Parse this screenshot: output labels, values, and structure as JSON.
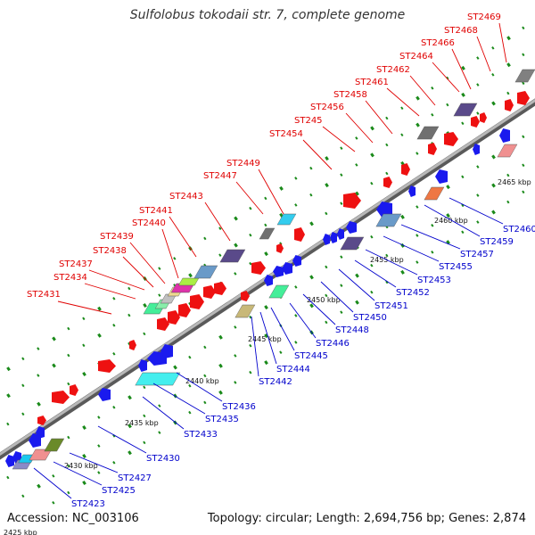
{
  "title": "Sulfolobus tokodaii str. 7, complete genome",
  "footer": {
    "accession": "Accession: NC_003106",
    "topology": "Topology: circular; Length: 2,694,756 bp; Genes: 2,874"
  },
  "ticks": [
    "2425 kbp",
    "2430 kbp",
    "2435 kbp",
    "2440 kbp",
    "2445 kbp",
    "2450 kbp",
    "2455 kbp",
    "2460 kbp",
    "2465 kbp"
  ],
  "top_labels": [
    "ST2431",
    "ST2434",
    "ST2437",
    "ST2438",
    "ST2439",
    "ST2440",
    "ST2441",
    "ST2443",
    "ST2447",
    "ST2449",
    "ST2454",
    "ST245",
    "ST2456",
    "ST2458",
    "ST2461",
    "ST2462",
    "ST2464",
    "ST2466",
    "ST2468",
    "ST2469"
  ],
  "bottom_labels": [
    "ST2423",
    "ST2425",
    "ST2427",
    "ST2430",
    "ST2433",
    "ST2435",
    "ST2436",
    "ST2442",
    "ST2444",
    "ST2445",
    "ST2446",
    "ST2448",
    "ST2450",
    "ST2451",
    "ST2452",
    "ST2453",
    "ST2455",
    "ST2457",
    "ST2459",
    "ST2460"
  ],
  "colors": {
    "forward_gene": "#ee1111",
    "reverse_gene": "#1a1aee",
    "backbone": "#888888",
    "top_label": "#e00000",
    "bottom_label": "#0000cc",
    "dot": "#1a8a1a"
  }
}
